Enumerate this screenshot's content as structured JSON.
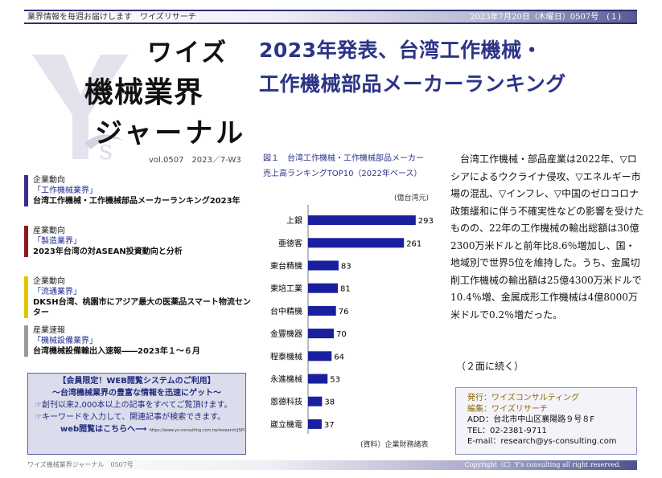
{
  "header": {
    "left": "業界情報を毎週お届けします　ワイズリサーチ",
    "right": "2023年7月20日（木曜日）0507号　(１)"
  },
  "masthead": {
    "line1": "ワイズ",
    "line2": "機械業界",
    "line3": "ジャーナル",
    "volume": "vol.0507　2023／7-W3"
  },
  "headline": {
    "line1": "2023年発表、台湾工作機械・",
    "line2": "工作機械部品メーカーランキング"
  },
  "toc": [
    {
      "category": "企業動向",
      "industry": "「工作機械業界」",
      "text": "台湾工作機械・工作機械部品メーカーランキング2023年",
      "color": "#3a2e8f"
    },
    {
      "category": "産業動向",
      "industry": "「製造業界」",
      "text": "2023年台湾の対ASEAN投資動向と分析",
      "color": "#8b1a1a"
    },
    {
      "category": "企業動向",
      "industry": "「流通業界」",
      "text": "DKSH台湾、桃園市にアジア最大の医薬品スマート物流センター",
      "color": "#e6c400"
    },
    {
      "category": "産業速報",
      "industry": "「機械設備業界」",
      "text": "台湾機械設備輸出入速報――2023年１～６月",
      "color": "#9a9a9a"
    }
  ],
  "member": {
    "line1": "【会員限定！WEB閲覧システムのご利用】",
    "line2": "～台湾機械業界の豊富な情報を迅速にゲット～",
    "line3": "☞創刊以来2,000本以上の記事をすべてご覧頂けます。",
    "line4": "☞キーワードを入力して、関連記事が検索できます。",
    "line5": "web閲覧はこちらへ⟶",
    "url": "https://www.ys-consulting.com.tw/research/JSP/"
  },
  "figure": {
    "title_line1": "図１　台湾工作機械・工作機械部品メーカー",
    "title_line2": "売上高ランキングTOP10（2022年ベース）",
    "unit": "(億台湾元)",
    "source": "(資料）企業財務諸表"
  },
  "chart_data": {
    "type": "bar",
    "orientation": "horizontal",
    "categories": [
      "上銀",
      "亜徳客",
      "東台精機",
      "東培工業",
      "台中精機",
      "金豐機器",
      "程泰機械",
      "永進機械",
      "恩德科技",
      "崴立機電"
    ],
    "values": [
      293,
      261,
      83,
      81,
      76,
      70,
      64,
      53,
      38,
      37
    ],
    "xlim": [
      0,
      300
    ],
    "color": "#1a1fa0",
    "grid": false
  },
  "body_text": "台湾工作機械・部品産業は2022年、▽ロシアによるウクライナ侵攻、▽エネルギー市場の混乱、▽インフレ、▽中国のゼロコロナ政策緩和に伴う不確実性などの影響を受けたものの、22年の工作機械の輸出総額は30億2300万米ドルと前年比8.6％増加し、国・地域別で世界5位を維持した。うち、金属切削工作機械の輸出額は25億4300万米ドルで10.4％増、金属成形工作機械は4億8000万米ドルで0.2％増だった。",
  "continued": "（２面に続く）",
  "contact": {
    "publisher": "発行：ワイズコンサルティング",
    "editor": "編集：ワイズリサーチ",
    "address": "ADD：台北市中山区襄陽路９号８F",
    "tel": "TEL：02-2381-9711",
    "email": "E-mail：research@ys-consulting.com"
  },
  "footer": {
    "left": "ワイズ機械業界ジャーナル　0507号",
    "right": "Copyright（C）Y's consulting all right reserved."
  }
}
